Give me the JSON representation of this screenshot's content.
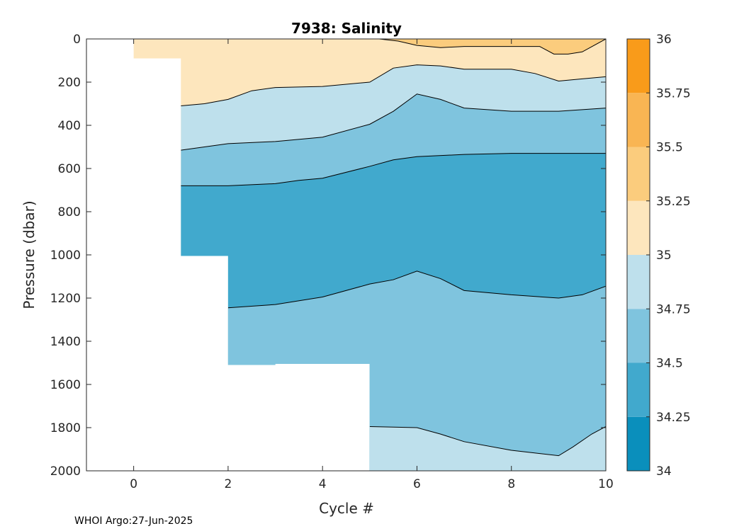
{
  "chart_data": {
    "type": "contour",
    "title": "7938:  Salinity",
    "xlabel": "Cycle #",
    "ylabel": "Pressure (dbar)",
    "xlim": [
      -1,
      10
    ],
    "ylim": [
      2000,
      0
    ],
    "xticks": [
      "0",
      "2",
      "4",
      "6",
      "8",
      "10"
    ],
    "yticks": [
      "0",
      "200",
      "400",
      "600",
      "800",
      "1000",
      "1200",
      "1400",
      "1600",
      "1800",
      "2000"
    ],
    "colorbar": {
      "ticks": [
        "36",
        "35.75",
        "35.5",
        "35.25",
        "35",
        "34.75",
        "34.5",
        "34.25",
        "34"
      ],
      "levels": [
        34,
        34.25,
        34.5,
        34.75,
        35,
        35.25,
        35.5,
        35.75,
        36
      ],
      "colors": [
        "#0a8fbc",
        "#41a9cd",
        "#7fc4de",
        "#bee0ec",
        "#fde6bd",
        "#fbcc7d",
        "#f9b553",
        "#f99b1a"
      ]
    },
    "profiles": [
      {
        "cycle": 0,
        "max_pressure": 90
      },
      {
        "cycle": 1,
        "max_pressure": 1005
      },
      {
        "cycle": 2,
        "max_pressure": 1510
      },
      {
        "cycle": 3,
        "max_pressure": 1505
      },
      {
        "cycle": 4,
        "max_pressure": 1505
      },
      {
        "cycle": 5,
        "max_pressure": 2000
      },
      {
        "cycle": 10,
        "max_pressure": 2000
      }
    ],
    "contours": [
      {
        "level": 35.25,
        "points": [
          [
            0,
            0
          ],
          [
            5.2,
            0
          ],
          [
            5.6,
            10
          ],
          [
            6,
            30
          ],
          [
            6.5,
            40
          ],
          [
            7,
            35
          ],
          [
            8.6,
            35
          ],
          [
            8.9,
            70
          ],
          [
            9.2,
            70
          ],
          [
            9.5,
            60
          ],
          [
            10,
            0
          ]
        ]
      },
      {
        "level": 35,
        "points": [
          [
            1,
            310
          ],
          [
            1.5,
            300
          ],
          [
            2,
            280
          ],
          [
            2.5,
            240
          ],
          [
            3,
            225
          ],
          [
            4,
            220
          ],
          [
            5,
            200
          ],
          [
            5.5,
            135
          ],
          [
            6,
            120
          ],
          [
            6.5,
            125
          ],
          [
            7,
            140
          ],
          [
            8,
            140
          ],
          [
            8.5,
            160
          ],
          [
            9,
            195
          ],
          [
            9.5,
            185
          ],
          [
            10,
            175
          ]
        ]
      },
      {
        "level": 34.75,
        "points": [
          [
            1,
            515
          ],
          [
            1.5,
            500
          ],
          [
            2,
            485
          ],
          [
            3,
            475
          ],
          [
            4,
            455
          ],
          [
            5,
            395
          ],
          [
            5.5,
            335
          ],
          [
            6,
            255
          ],
          [
            6.5,
            280
          ],
          [
            7,
            320
          ],
          [
            8,
            335
          ],
          [
            9,
            335
          ],
          [
            10,
            320
          ]
        ]
      },
      {
        "level": 34.5,
        "points": [
          [
            1,
            680
          ],
          [
            2,
            680
          ],
          [
            3,
            670
          ],
          [
            3.5,
            655
          ],
          [
            4,
            645
          ],
          [
            5,
            590
          ],
          [
            5.5,
            560
          ],
          [
            6,
            545
          ],
          [
            7,
            535
          ],
          [
            8,
            530
          ],
          [
            9,
            530
          ],
          [
            10,
            530
          ]
        ]
      },
      {
        "level": 34.5,
        "points": [
          [
            2,
            1245
          ],
          [
            3,
            1230
          ],
          [
            4,
            1195
          ],
          [
            5,
            1135
          ],
          [
            5.5,
            1115
          ],
          [
            6,
            1075
          ],
          [
            6.5,
            1110
          ],
          [
            7,
            1165
          ],
          [
            8,
            1185
          ],
          [
            9,
            1200
          ],
          [
            9.5,
            1185
          ],
          [
            10,
            1145
          ]
        ]
      },
      {
        "level": 34.75,
        "points": [
          [
            5,
            1795
          ],
          [
            6,
            1800
          ],
          [
            6.5,
            1830
          ],
          [
            7,
            1865
          ],
          [
            8,
            1905
          ],
          [
            9,
            1930
          ],
          [
            9.3,
            1890
          ],
          [
            9.7,
            1830
          ],
          [
            10,
            1795
          ]
        ]
      }
    ],
    "footer": "WHOI Argo:27-Jun-2025"
  }
}
